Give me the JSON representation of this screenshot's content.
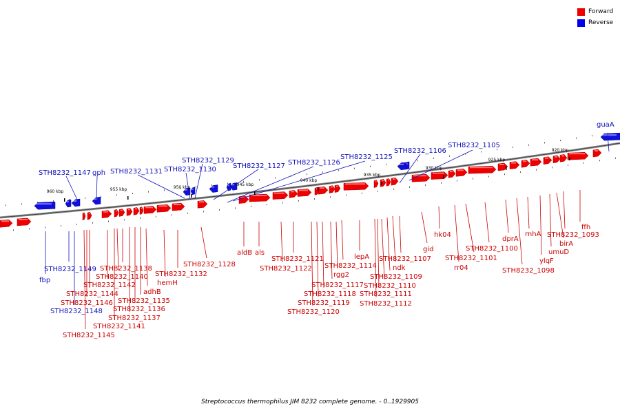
{
  "legend": [
    {
      "label": "Forward",
      "color": "#ee0000"
    },
    {
      "label": "Reverse",
      "color": "#0000ee"
    }
  ],
  "caption": "Streptococcus thermophilus JIM 8232 complete genome. - 0..1929905",
  "colors": {
    "forward": "#ee0000",
    "reverse": "#1010dd",
    "forward_text": "#cc0000",
    "reverse_text": "#1010bb",
    "backbone": "#888888"
  },
  "ticks": [
    "960 kbp",
    "955 kbp",
    "950 kbp",
    "945 kbp",
    "940 kbp",
    "935 kbp",
    "930 kbp",
    "925 kbp",
    "920 kbp"
  ],
  "reverse_labels": [
    "guaA",
    "STH8232_1105",
    "STH8232_1106",
    "STH8232_1125",
    "STH8232_1126",
    "STH8232_1127",
    "STH8232_1129",
    "STH8232_1130",
    "STH8232_1131",
    "gph",
    "STH8232_1147",
    "STH8232_1149",
    "fbp",
    "STH8232_1148"
  ],
  "forward_labels": [
    "ffh",
    "STH8232_1093",
    "birA",
    "umuD",
    "ylqF",
    "rnhA",
    "STH8232_1098",
    "dprA",
    "STH8232_1100",
    "STH8232_1101",
    "rr04",
    "hk04",
    "gid",
    "STH8232_1107",
    "ndk",
    "STH8232_1109",
    "STH8232_1110",
    "STH8232_1111",
    "STH8232_1112",
    "lepA",
    "STH8232_1114",
    "rgg2",
    "STH8232_1117",
    "STH8232_1118",
    "STH8232_1119",
    "STH8232_1120",
    "STH8232_1121",
    "STH8232_1122",
    "als",
    "aldB",
    "STH8232_1128",
    "STH8232_1132",
    "hemH",
    "adhB",
    "STH8232_1135",
    "STH8232_1136",
    "STH8232_1137",
    "STH8232_1138",
    "STH8232_1140",
    "STH8232_1141",
    "STH8232_1142",
    "STH8232_1144",
    "STH8232_1146",
    "STH8232_1145"
  ]
}
